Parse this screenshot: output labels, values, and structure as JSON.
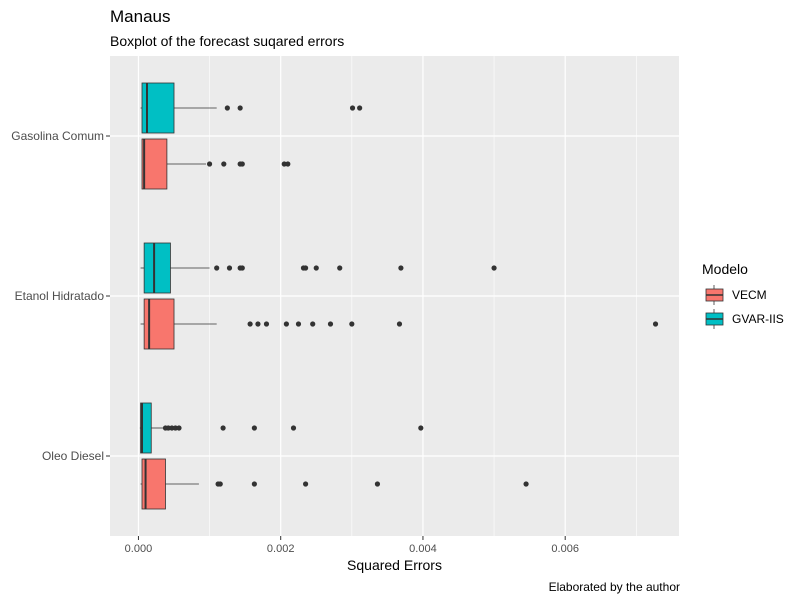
{
  "chart_data": {
    "type": "boxplot",
    "orientation": "horizontal",
    "title": "Manaus",
    "subtitle": "Boxplot of the forecast suqared errors",
    "xlabel": "Squared Errors",
    "ylabel": "",
    "caption": "Elaborated by the author",
    "xlim": [
      -0.0004,
      0.0076
    ],
    "x_ticks": [
      0.0,
      0.002,
      0.004,
      0.006
    ],
    "x_tick_labels": [
      "0.000",
      "0.002",
      "0.004",
      "0.006"
    ],
    "categories": [
      "Gasolina Comum",
      "Etanol Hidratado",
      "Oleo Diesel"
    ],
    "legend": {
      "title": "Modelo",
      "placement": "right",
      "items": [
        {
          "name": "VECM",
          "color": "#f8766d"
        },
        {
          "name": "GVAR-IIS",
          "color": "#00bfc4"
        }
      ]
    },
    "grid": true,
    "series": [
      {
        "name": "VECM",
        "color": "#f8766d",
        "boxes": [
          {
            "category": "Gasolina Comum",
            "min": 5e-05,
            "q1": 5e-05,
            "median": 8e-05,
            "q3": 0.0004,
            "max": 0.00095,
            "outliers": [
              0.001,
              0.0012,
              0.00143,
              0.00146,
              0.00205,
              0.0021
            ]
          },
          {
            "category": "Etanol Hidratado",
            "min": 3e-05,
            "q1": 8e-05,
            "median": 0.00015,
            "q3": 0.0005,
            "max": 0.0011,
            "outliers": [
              0.00157,
              0.00168,
              0.0018,
              0.00208,
              0.00225,
              0.00245,
              0.0027,
              0.003,
              0.00367,
              0.00727
            ]
          },
          {
            "category": "Oleo Diesel",
            "min": 3e-05,
            "q1": 5e-05,
            "median": 0.0001,
            "q3": 0.00038,
            "max": 0.00085,
            "outliers": [
              0.00112,
              0.00115,
              0.00163,
              0.00235,
              0.00336,
              0.00545
            ]
          }
        ]
      },
      {
        "name": "GVAR-IIS",
        "color": "#00bfc4",
        "boxes": [
          {
            "category": "Gasolina Comum",
            "min": 3e-05,
            "q1": 5e-05,
            "median": 0.00012,
            "q3": 0.0005,
            "max": 0.0011,
            "outliers": [
              0.00125,
              0.00143,
              0.00301,
              0.00311
            ]
          },
          {
            "category": "Etanol Hidratado",
            "min": 3e-05,
            "q1": 8e-05,
            "median": 0.00022,
            "q3": 0.00045,
            "max": 0.001,
            "outliers": [
              0.0011,
              0.00128,
              0.00143,
              0.00146,
              0.00232,
              0.00235,
              0.0025,
              0.00283,
              0.00369,
              0.005
            ]
          },
          {
            "category": "Oleo Diesel",
            "min": 2e-05,
            "q1": 3e-05,
            "median": 5e-05,
            "q3": 0.00018,
            "max": 0.00035,
            "outliers": [
              0.00038,
              0.00042,
              0.00047,
              0.00052,
              0.00057,
              0.00119,
              0.00163,
              0.00218,
              0.00397
            ]
          }
        ]
      }
    ]
  }
}
